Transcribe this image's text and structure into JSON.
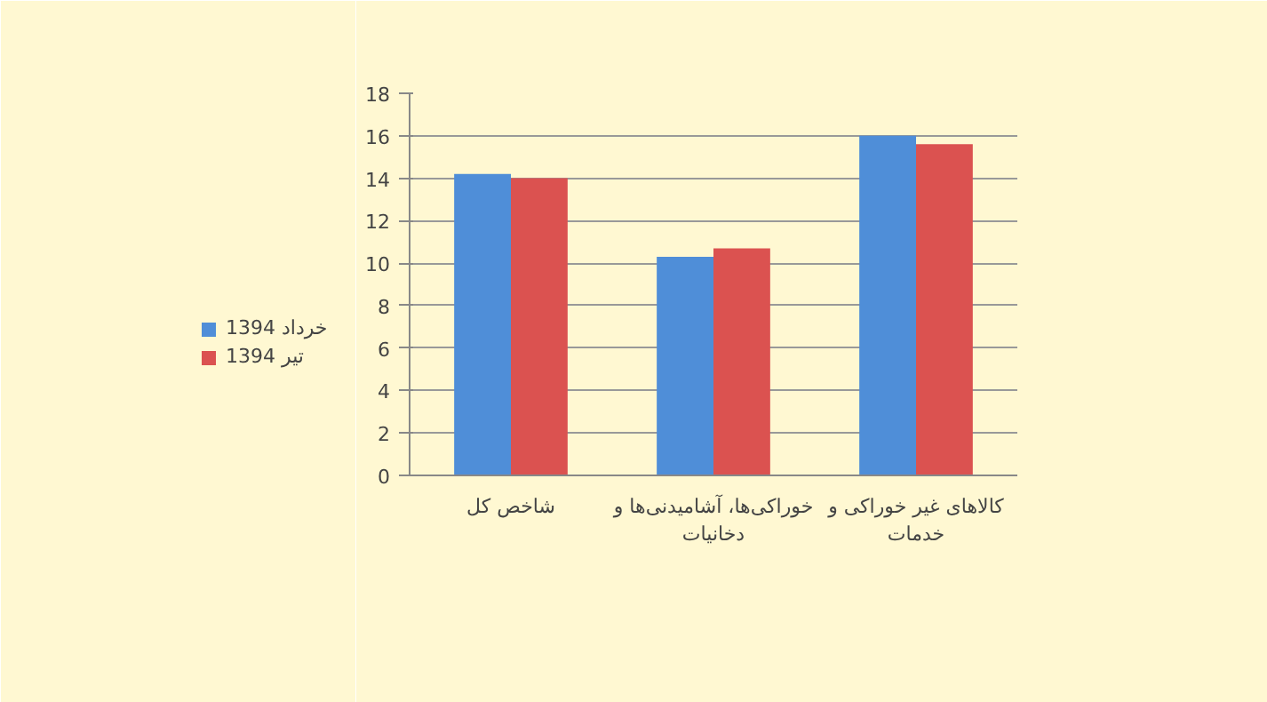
{
  "chart_data": {
    "type": "bar",
    "categories": [
      "شاخص کل",
      "خوراکی‌ها، آشامیدنی‌ها و دخانیات",
      "کالاهای غیر خوراکی و خدمات"
    ],
    "series": [
      {
        "name": "خرداد 1394",
        "color": "#4f8ed8",
        "values": [
          14.2,
          10.3,
          16.0
        ]
      },
      {
        "name": "تیر 1394",
        "color": "#db5250",
        "values": [
          14.0,
          10.7,
          15.6
        ]
      }
    ],
    "ylim": [
      0,
      18
    ],
    "yticks": [
      0,
      2,
      4,
      6,
      8,
      10,
      12,
      14,
      16,
      18
    ],
    "grid": "y",
    "legend": "left"
  }
}
